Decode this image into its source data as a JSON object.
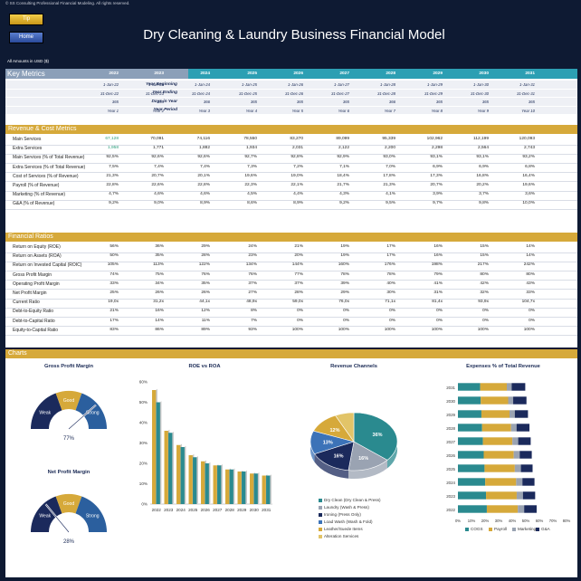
{
  "header": {
    "copyright": "© SS Consulting Professional Financial Modeling. All rights reserved.",
    "tip_label": "Tip",
    "home_label": "Home",
    "title": "Dry Cleaning & Laundry Business Financial Model",
    "units": "All Amounts in  USD ($)"
  },
  "key_metrics": {
    "label": "Key Metrics",
    "years": [
      "2022",
      "2023",
      "2024",
      "2025",
      "2026",
      "2027",
      "2028",
      "2029",
      "2030",
      "2031"
    ],
    "timeline": [
      {
        "label": "Year Beginning",
        "values": [
          "1-Jan-22",
          "1-Jan-23",
          "1-Jan-24",
          "1-Jan-25",
          "1-Jan-26",
          "1-Jan-27",
          "1-Jan-28",
          "1-Jan-29",
          "1-Jan-30",
          "1-Jan-31"
        ]
      },
      {
        "label": "Year Ending",
        "values": [
          "31-Dec-22",
          "31-Dec-23",
          "31-Dec-24",
          "31-Dec-25",
          "31-Dec-26",
          "31-Dec-27",
          "31-Dec-28",
          "31-Dec-29",
          "31-Dec-30",
          "31-Dec-31"
        ]
      },
      {
        "label": "Days in Year",
        "values": [
          "365",
          "365",
          "366",
          "365",
          "365",
          "365",
          "366",
          "365",
          "365",
          "365"
        ]
      },
      {
        "label": "Year Period",
        "values": [
          "Year 1",
          "Year 2",
          "Year 3",
          "Year 4",
          "Year 5",
          "Year 6",
          "Year 7",
          "Year 8",
          "Year 9",
          "Year 10"
        ]
      }
    ]
  },
  "revenue_cost": {
    "label": "Revenue & Cost Metrics",
    "rows": [
      {
        "label": "Main Services",
        "values": [
          "67,128",
          "70,091",
          "74,116",
          "78,550",
          "83,270",
          "89,099",
          "95,339",
          "102,962",
          "112,199",
          "120,093"
        ]
      },
      {
        "label": "Extra Services",
        "values": [
          "1,958",
          "1,771",
          "1,882",
          "1,934",
          "2,031",
          "2,122",
          "2,200",
          "2,298",
          "2,564",
          "2,743"
        ]
      },
      {
        "label": "Main Services (% of Total Revenue)",
        "values": [
          "92,5%",
          "92,6%",
          "92,6%",
          "92,7%",
          "92,8%",
          "92,9%",
          "93,0%",
          "93,1%",
          "93,1%",
          "93,2%"
        ]
      },
      {
        "label": "Extra Services (% of Total Revenue)",
        "values": [
          "7,5%",
          "7,4%",
          "7,4%",
          "7,3%",
          "7,2%",
          "7,1%",
          "7,0%",
          "6,9%",
          "6,9%",
          "6,8%"
        ]
      },
      {
        "label": "Cost of Services (% of Revenue)",
        "values": [
          "21,3%",
          "20,7%",
          "20,1%",
          "19,6%",
          "19,0%",
          "18,4%",
          "17,8%",
          "17,3%",
          "16,8%",
          "16,4%"
        ]
      },
      {
        "label": "Payroll (% of Revenue)",
        "values": [
          "22,8%",
          "22,6%",
          "22,8%",
          "22,3%",
          "22,1%",
          "21,7%",
          "21,3%",
          "20,7%",
          "20,2%",
          "19,6%"
        ]
      },
      {
        "label": "Marketing (% of Revenue)",
        "values": [
          "4,7%",
          "4,6%",
          "4,6%",
          "4,5%",
          "4,4%",
          "4,3%",
          "4,1%",
          "3,9%",
          "3,7%",
          "3,6%"
        ]
      },
      {
        "label": "G&A (% of Revenue)",
        "values": [
          "9,2%",
          "9,0%",
          "8,9%",
          "8,6%",
          "8,9%",
          "9,2%",
          "9,5%",
          "9,7%",
          "9,8%",
          "10,0%"
        ]
      }
    ]
  },
  "financial_ratios": {
    "label": "Financial Ratios",
    "rows": [
      {
        "label": "Return on Equity (ROE)",
        "values": [
          "56%",
          "36%",
          "29%",
          "24%",
          "21%",
          "19%",
          "17%",
          "16%",
          "15%",
          "14%"
        ]
      },
      {
        "label": "Return on Assets (ROA)",
        "values": [
          "50%",
          "35%",
          "28%",
          "23%",
          "20%",
          "19%",
          "17%",
          "16%",
          "15%",
          "14%"
        ]
      },
      {
        "label": "Return on Invested Capital (ROIC)",
        "values": [
          "105%",
          "113%",
          "122%",
          "134%",
          "144%",
          "160%",
          "176%",
          "198%",
          "217%",
          "242%"
        ]
      },
      {
        "label": "Gross Profit Margin",
        "values": [
          "74%",
          "75%",
          "76%",
          "76%",
          "77%",
          "78%",
          "78%",
          "79%",
          "80%",
          "80%"
        ]
      },
      {
        "label": "Operating Profit Margin",
        "values": [
          "33%",
          "34%",
          "35%",
          "37%",
          "37%",
          "39%",
          "40%",
          "41%",
          "42%",
          "43%"
        ]
      },
      {
        "label": "Net Profit Margin",
        "values": [
          "25%",
          "26%",
          "26%",
          "27%",
          "28%",
          "29%",
          "30%",
          "31%",
          "32%",
          "33%"
        ]
      },
      {
        "label": "Current Ratio",
        "values": [
          "19,0x",
          "31,2x",
          "44,1x",
          "48,9x",
          "59,0x",
          "76,0x",
          "71,1x",
          "81,4x",
          "93,9x",
          "104,7x"
        ]
      },
      {
        "label": "Debt-to-Equity Ratio",
        "values": [
          "21%",
          "16%",
          "12%",
          "8%",
          "0%",
          "0%",
          "0%",
          "0%",
          "0%",
          "0%"
        ]
      },
      {
        "label": "Debt-to-Capital Ratio",
        "values": [
          "17%",
          "14%",
          "11%",
          "7%",
          "0%",
          "0%",
          "0%",
          "0%",
          "0%",
          "0%"
        ]
      },
      {
        "label": "Equity-to-Capital Ratio",
        "values": [
          "83%",
          "86%",
          "89%",
          "93%",
          "100%",
          "100%",
          "100%",
          "100%",
          "100%",
          "100%"
        ]
      }
    ]
  },
  "charts_section": {
    "label": "Charts"
  },
  "chart_data": [
    {
      "type": "gauge",
      "title": "Gross Profit Margin",
      "value": 0.77,
      "value_label": "77%",
      "segments": [
        {
          "label": "Weak"
        },
        {
          "label": "Good"
        },
        {
          "label": "Strong"
        }
      ],
      "colors": {
        "weak": "#1b2a5c",
        "good": "#d6a93a",
        "strong": "#2b5f9e"
      }
    },
    {
      "type": "gauge",
      "title": "Net Profit Margin",
      "value": 0.28,
      "value_label": "28%",
      "segments": [
        {
          "label": "Weak"
        },
        {
          "label": "Good"
        },
        {
          "label": "Strong"
        }
      ],
      "colors": {
        "weak": "#1b2a5c",
        "good": "#d6a93a",
        "strong": "#2b5f9e"
      }
    },
    {
      "type": "bar",
      "title": "ROE vs ROA",
      "categories": [
        "2022",
        "2023",
        "2024",
        "2025",
        "2026",
        "2027",
        "2028",
        "2029",
        "2030",
        "2031"
      ],
      "series": [
        {
          "values": [
            56,
            36,
            29,
            24,
            21,
            19,
            17,
            16,
            15,
            14
          ],
          "color": "#d6a93a"
        },
        {
          "values": [
            50,
            35,
            28,
            23,
            20,
            19,
            17,
            16,
            15,
            14
          ],
          "color": "#2a8a8f"
        }
      ],
      "ylim": [
        0,
        60
      ],
      "yticks": [
        "0%",
        "10%",
        "20%",
        "30%",
        "40%",
        "50%",
        "60%"
      ]
    },
    {
      "type": "pie",
      "title": "Revenue Channels",
      "slices": [
        {
          "name": "Dry Clean (Dry Clean & Press)",
          "value": 0.36,
          "label": "36%",
          "color": "#2a8a8f"
        },
        {
          "name": "Laundry (Wash & Press)",
          "value": 0.16,
          "label": "16%",
          "color": "#9aa3b2"
        },
        {
          "name": "Ironing (Press Only)",
          "value": 0.16,
          "label": "16%",
          "color": "#1b2a5c"
        },
        {
          "name": "Load Wash (Wash & Fold)",
          "value": 0.13,
          "label": "13%",
          "color": "#3c73b8"
        },
        {
          "name": "Leather/Suede Items",
          "value": 0.12,
          "label": "12%",
          "color": "#d6a93a"
        },
        {
          "name": "Alteration Services",
          "value": 0.07,
          "label": "",
          "color": "#e2c468"
        }
      ]
    },
    {
      "type": "bar",
      "title": "Expenses % of Total Revenue",
      "orientation": "horizontal",
      "stacked": true,
      "categories": [
        "2031",
        "2030",
        "2029",
        "2028",
        "2027",
        "2026",
        "2025",
        "2024",
        "2023",
        "2022"
      ],
      "series": [
        {
          "name": "COGS",
          "values": [
            16.4,
            16.8,
            17.3,
            17.8,
            18.4,
            19.0,
            19.6,
            20.1,
            20.7,
            21.3
          ],
          "color": "#2a8a8f"
        },
        {
          "name": "Payroll",
          "values": [
            19.6,
            20.2,
            20.7,
            21.3,
            21.7,
            22.1,
            22.3,
            22.8,
            22.6,
            22.8
          ],
          "color": "#d6a93a"
        },
        {
          "name": "Marketing",
          "values": [
            3.6,
            3.7,
            3.9,
            4.1,
            4.3,
            4.4,
            4.5,
            4.6,
            4.6,
            4.7
          ],
          "color": "#9aa3b2"
        },
        {
          "name": "G&A",
          "values": [
            10.0,
            9.8,
            9.7,
            9.5,
            9.2,
            8.9,
            8.6,
            8.9,
            9.0,
            9.2
          ],
          "color": "#1b2a5c"
        }
      ],
      "xlim": [
        0,
        80
      ],
      "xticks": [
        "0%",
        "10%",
        "20%",
        "30%",
        "40%",
        "50%",
        "60%",
        "70%",
        "80%"
      ]
    }
  ]
}
